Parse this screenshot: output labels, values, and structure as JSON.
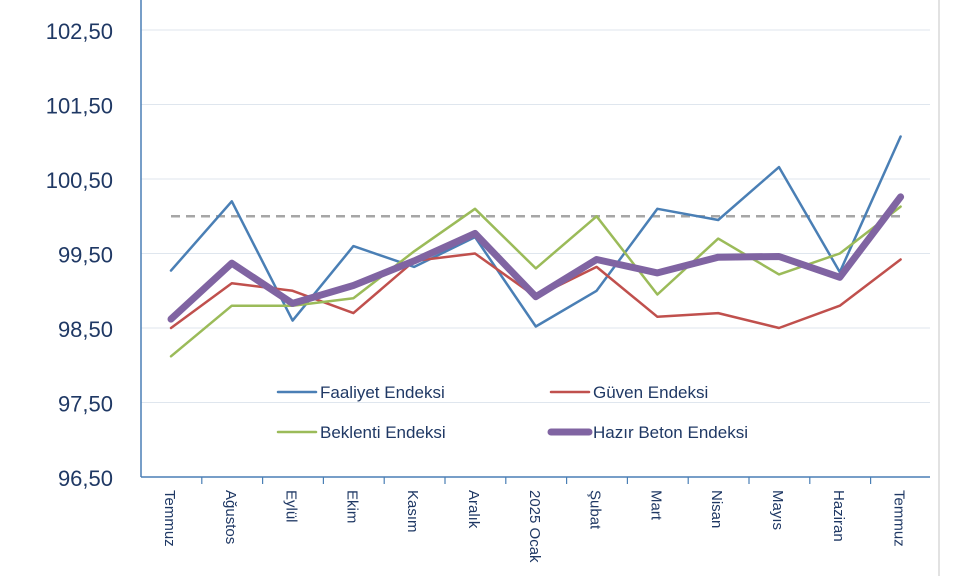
{
  "chart_data": {
    "type": "line",
    "categories": [
      "Temmuz",
      "Ağustos",
      "Eylül",
      "Ekim",
      "Kasım",
      "Aralık",
      "2025 Ocak",
      "Şubat",
      "Mart",
      "Nisan",
      "Mayıs",
      "Haziran",
      "Temmuz"
    ],
    "ylim": [
      96.5,
      102.9
    ],
    "yticks": [
      "96,50",
      "97,50",
      "98,50",
      "99,50",
      "100,50",
      "101,50",
      "102,50"
    ],
    "ytick_values": [
      96.5,
      97.5,
      98.5,
      99.5,
      100.5,
      101.5,
      102.5
    ],
    "reference_line": {
      "value": 100,
      "color": "#a6a6a6",
      "style": "dashed"
    },
    "grid": true,
    "legend_position": "inside-bottom-center",
    "series": [
      {
        "name": "Faaliyet Endeksi",
        "color": "#4a7fb5",
        "values": [
          99.27,
          100.2,
          98.6,
          99.6,
          99.32,
          99.72,
          98.52,
          99.0,
          100.1,
          99.95,
          100.66,
          99.25,
          101.07
        ]
      },
      {
        "name": "Güven Endeksi",
        "color": "#c0504d",
        "values": [
          98.5,
          99.1,
          99.0,
          98.7,
          99.4,
          99.5,
          98.92,
          99.32,
          98.65,
          98.7,
          98.5,
          98.8,
          99.42
        ]
      },
      {
        "name": "Beklenti Endeksi",
        "color": "#9bbb59",
        "values": [
          98.12,
          98.8,
          98.8,
          98.9,
          99.53,
          100.1,
          99.3,
          100.0,
          98.95,
          99.7,
          99.22,
          99.5,
          100.13
        ]
      },
      {
        "name": "Hazır Beton Endeksi",
        "color": "#8064a2",
        "values": [
          98.62,
          99.37,
          98.83,
          99.07,
          99.4,
          99.77,
          98.92,
          99.42,
          99.24,
          99.45,
          99.46,
          99.18,
          100.26
        ]
      }
    ]
  }
}
